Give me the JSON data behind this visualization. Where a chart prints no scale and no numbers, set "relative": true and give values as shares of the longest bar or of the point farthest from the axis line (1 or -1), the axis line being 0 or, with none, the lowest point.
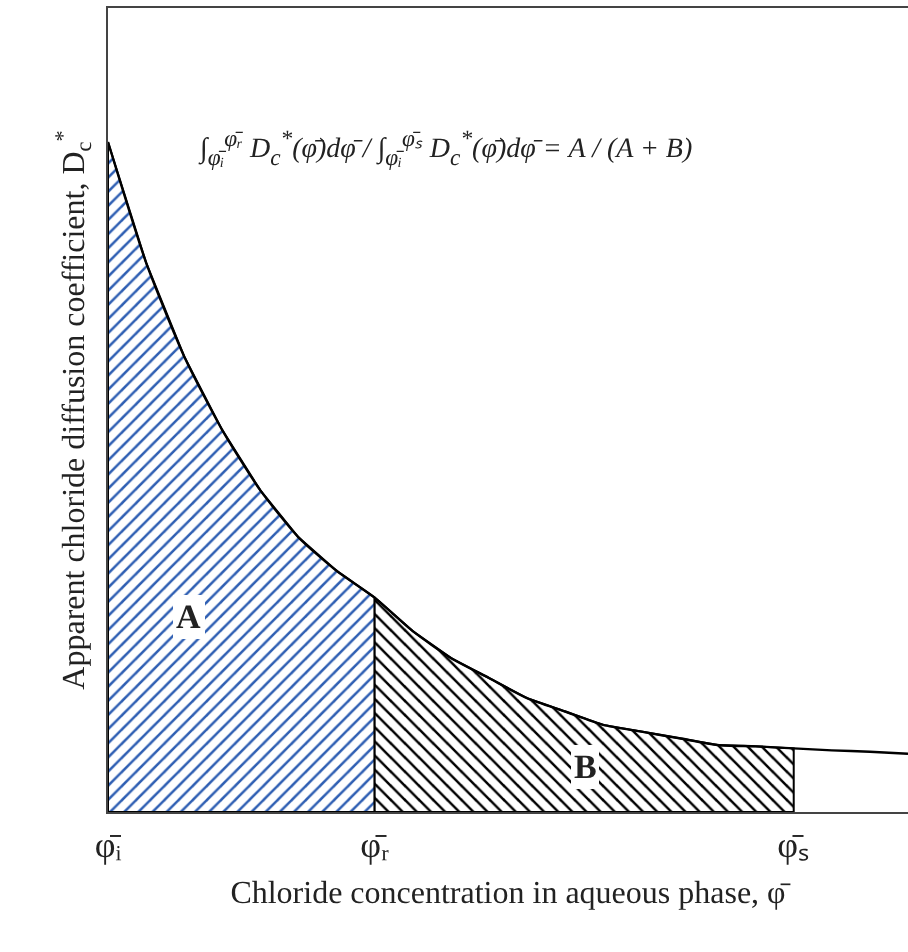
{
  "chart_data": {
    "type": "area",
    "relative": true,
    "xlabel": "Chloride concentration in aqueous phase, φ̄",
    "ylabel": "Apparent chloride diffusion coefficient, D$_{c}$$^{*}$",
    "categories": [
      "φ̄ᵢ",
      null,
      null,
      null,
      null,
      null,
      null,
      "φ̄ᵣ",
      null,
      null,
      null,
      null,
      null,
      null,
      null,
      null,
      null,
      null,
      "φ̄ₛ",
      null,
      null,
      null
    ],
    "series": [
      {
        "color": "#2f5fb3",
        "values": [
          1,
          0.82,
          0.68,
          0.57,
          0.48,
          0.41,
          0.36,
          0.32,
          null,
          null,
          null,
          null,
          null,
          null,
          null,
          null,
          null,
          null,
          null,
          null,
          null,
          null
        ]
      },
      {
        "color": "#000000",
        "values": [
          null,
          null,
          null,
          null,
          null,
          null,
          null,
          0.32,
          0.27,
          0.23,
          0.2,
          0.17,
          0.15,
          0.13,
          0.12,
          0.11,
          0.1,
          0.098,
          0.095,
          null,
          null,
          null
        ]
      },
      {
        "type": "line",
        "color": "#000000",
        "values": [
          1,
          0.82,
          0.68,
          0.57,
          0.48,
          0.41,
          0.36,
          0.32,
          0.27,
          0.23,
          0.2,
          0.17,
          0.15,
          0.13,
          0.12,
          0.11,
          0.1,
          0.098,
          0.095,
          0.092,
          0.09,
          0.087
        ]
      }
    ],
    "annotations": [
      "∫$_{φ̄ᵢ}$$^{φ̄ᵣ}$ D$_{c}$$^{*}$(φ̄)dφ̄ / ∫$_{φ̄ᵢ}$$^{φ̄ₛ}$ D$_{c}$$^{*}$(φ̄)dφ̄ = A / (A + B)",
      {
        "text": "A",
        "y": 0.29
      },
      {
        "text": "B",
        "y": 0.066
      }
    ],
    "grid": false
  }
}
